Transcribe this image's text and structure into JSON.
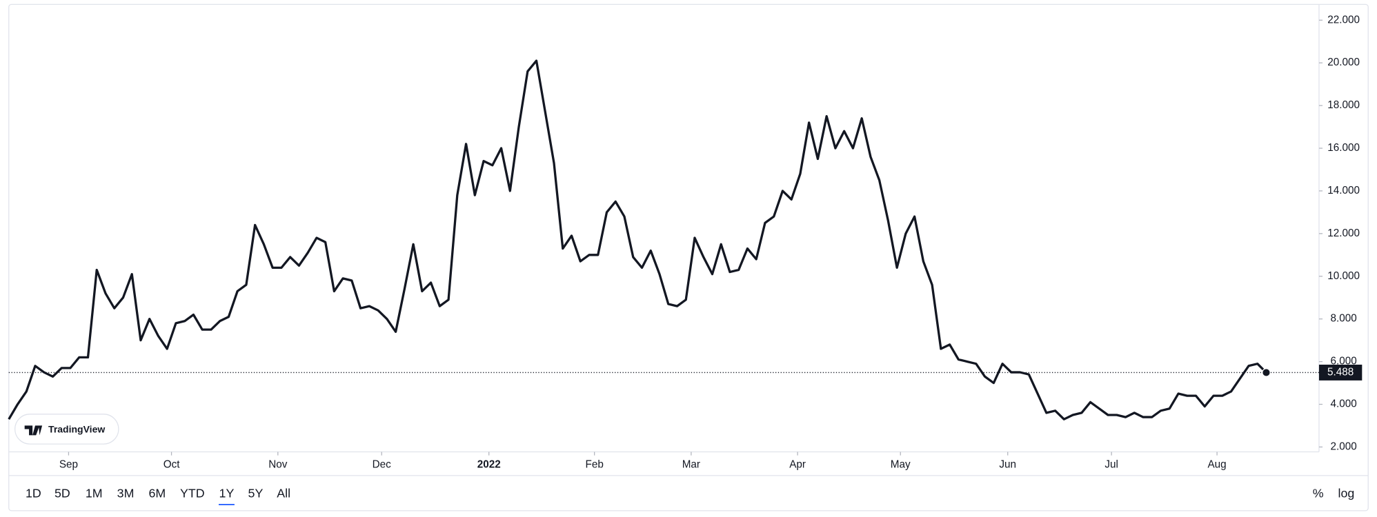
{
  "chart_data": {
    "type": "line",
    "color": "#131722",
    "values": [
      3.3,
      4.0,
      4.6,
      5.8,
      5.5,
      5.3,
      5.7,
      5.7,
      6.2,
      6.2,
      10.3,
      9.2,
      8.5,
      9.0,
      10.1,
      7.0,
      8.0,
      7.2,
      6.6,
      7.8,
      7.9,
      8.2,
      7.5,
      7.5,
      7.9,
      8.1,
      9.3,
      9.6,
      12.4,
      11.5,
      10.4,
      10.4,
      10.9,
      10.5,
      11.1,
      11.8,
      11.6,
      9.3,
      9.9,
      9.8,
      8.5,
      8.6,
      8.4,
      8.0,
      7.4,
      9.4,
      11.5,
      9.3,
      9.7,
      8.6,
      8.9,
      13.8,
      16.2,
      13.8,
      15.4,
      15.2,
      16.0,
      14.0,
      17.0,
      19.6,
      20.1,
      17.7,
      15.3,
      11.3,
      11.9,
      10.7,
      11.0,
      11.0,
      13.0,
      13.5,
      12.8,
      10.9,
      10.4,
      11.2,
      10.1,
      8.7,
      8.6,
      8.9,
      11.8,
      10.9,
      10.1,
      11.5,
      10.2,
      10.3,
      11.3,
      10.8,
      12.5,
      12.8,
      14.0,
      13.6,
      14.8,
      17.2,
      15.5,
      17.5,
      16.0,
      16.8,
      16.0,
      17.4,
      15.6,
      14.5,
      12.6,
      10.4,
      12.0,
      12.8,
      10.7,
      9.6,
      6.6,
      6.8,
      6.1,
      6.0,
      5.9,
      5.3,
      5.0,
      5.9,
      5.5,
      5.5,
      5.4,
      4.5,
      3.6,
      3.7,
      3.3,
      3.5,
      3.6,
      4.1,
      3.8,
      3.5,
      3.5,
      3.4,
      3.6,
      3.4,
      3.4,
      3.7,
      3.8,
      4.5,
      4.4,
      4.4,
      3.9,
      4.4,
      4.4,
      4.6,
      5.2,
      5.8,
      5.9,
      5.488
    ],
    "xlim": [
      0,
      149
    ],
    "xticks": [
      {
        "value": 6.8,
        "label": "Sep"
      },
      {
        "value": 18.5,
        "label": "Oct"
      },
      {
        "value": 30.6,
        "label": "Nov"
      },
      {
        "value": 42.4,
        "label": "Dec"
      },
      {
        "value": 54.6,
        "label": "2022"
      },
      {
        "value": 66.6,
        "label": "Feb"
      },
      {
        "value": 77.6,
        "label": "Mar"
      },
      {
        "value": 89.7,
        "label": "Apr"
      },
      {
        "value": 101.4,
        "label": "May"
      },
      {
        "value": 113.6,
        "label": "Jun"
      },
      {
        "value": 125.4,
        "label": "Jul"
      },
      {
        "value": 137.4,
        "label": "Aug"
      }
    ],
    "ylim": [
      1.77,
      22.74
    ],
    "yticks": [
      {
        "value": 2,
        "label": "2.000"
      },
      {
        "value": 4,
        "label": "4.000"
      },
      {
        "value": 6,
        "label": "6.000"
      },
      {
        "value": 8,
        "label": "8.000"
      },
      {
        "value": 10,
        "label": "10.000"
      },
      {
        "value": 12,
        "label": "12.000"
      },
      {
        "value": 14,
        "label": "14.000"
      },
      {
        "value": 16,
        "label": "16.000"
      },
      {
        "value": 18,
        "label": "18.000"
      },
      {
        "value": 20,
        "label": "20.000"
      },
      {
        "value": 22,
        "label": "22.000"
      }
    ],
    "log_scale": false,
    "grid": false
  },
  "ui": {
    "logo": "TradingView",
    "range_buttons": [
      "1D",
      "5D",
      "1M",
      "3M",
      "6M",
      "YTD",
      "1Y",
      "5Y",
      "All"
    ],
    "selected_range_index": 6,
    "scale_buttons": [
      "%",
      "log"
    ]
  }
}
